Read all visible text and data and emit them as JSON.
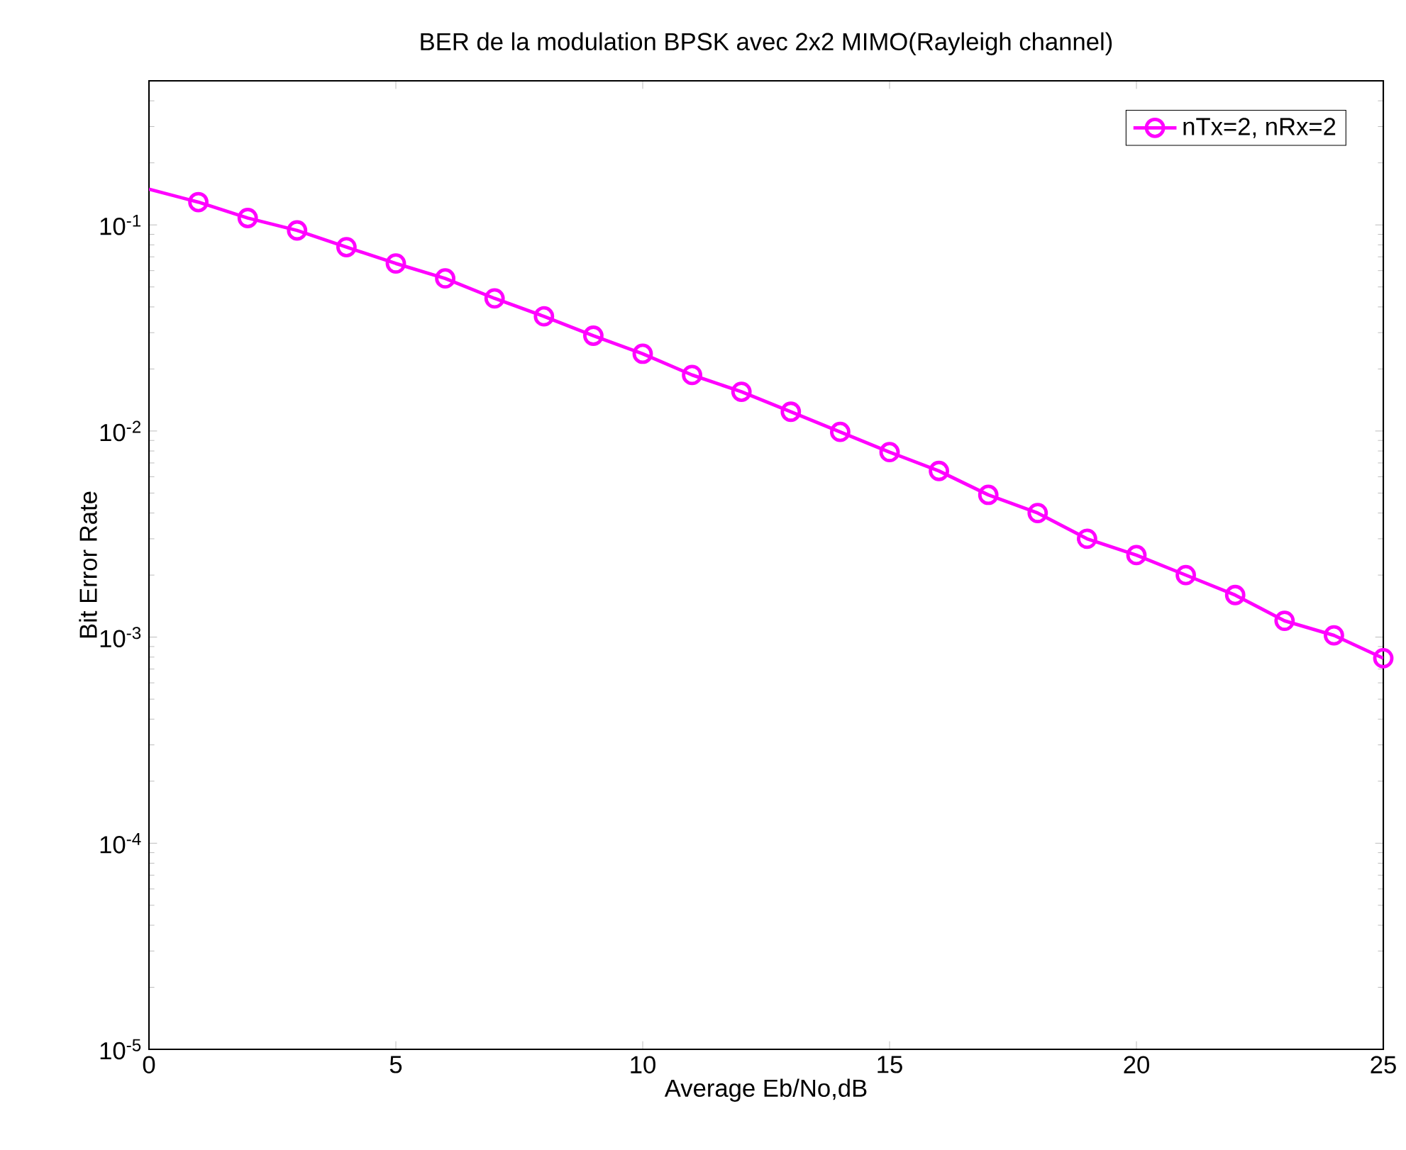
{
  "chart_data": {
    "type": "line",
    "title": "BER de la modulation BPSK avec 2x2 MIMO(Rayleigh channel)",
    "xlabel": "Average Eb/No,dB",
    "ylabel": "Bit Error Rate",
    "x": [
      0,
      1,
      2,
      3,
      4,
      5,
      6,
      7,
      8,
      9,
      10,
      11,
      12,
      13,
      14,
      15,
      16,
      17,
      18,
      19,
      20,
      21,
      22,
      23,
      24,
      25
    ],
    "series": [
      {
        "name": "nTx=2, nRx=2",
        "color": "#ff00ff",
        "values": [
          0.149,
          0.129,
          0.108,
          0.094,
          0.078,
          0.065,
          0.055,
          0.044,
          0.036,
          0.029,
          0.0237,
          0.0187,
          0.0155,
          0.0124,
          0.0099,
          0.0079,
          0.0064,
          0.0049,
          0.004,
          0.003,
          0.0025,
          0.002,
          0.0016,
          0.0012,
          0.00102,
          0.00079
        ]
      }
    ],
    "xlim": [
      0,
      25
    ],
    "xticks": [
      0,
      5,
      10,
      15,
      20,
      25
    ],
    "ylim": [
      1e-05,
      0.5
    ],
    "yticks": [
      {
        "value": 1e-05,
        "label": "10$^{-5}$"
      },
      {
        "value": 0.0001,
        "label": "10$^{-4}$"
      },
      {
        "value": 0.001,
        "label": "10$^{-3}$"
      },
      {
        "value": 0.01,
        "label": "10$^{-2}$"
      },
      {
        "value": 0.1,
        "label": "10$^{-1}$"
      }
    ],
    "log": "y",
    "grid": false,
    "legend": "top right",
    "marker": "circle",
    "line_style": "solid"
  }
}
